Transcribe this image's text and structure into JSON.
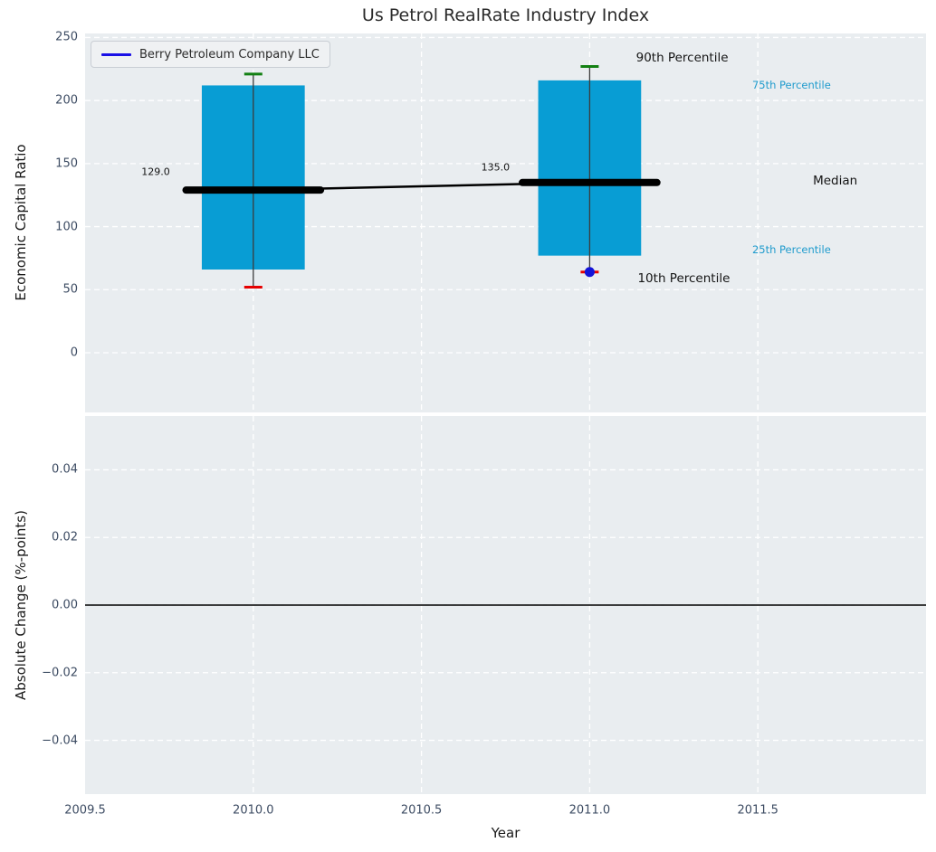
{
  "styles": {
    "axes_bg": "#e9edf0",
    "grid_color": "#ffffff",
    "tick_color": "#3d4c63",
    "bar_color": "#089dd4",
    "whisker_color": "#3c3c3c",
    "p90_tick_color": "#128012",
    "p10_tick_color": "#e60000",
    "company_color": "#1313d8",
    "median_color": "#000000",
    "zero_line_color": "#000000",
    "percentile_label_color": "#1f9bcd"
  },
  "chart_data": [
    {
      "type": "bar",
      "title": "Us Petrol RealRate Industry Index",
      "ylabel": "Economic Capital Ratio",
      "legend": {
        "label": "Berry Petroleum Company LLC",
        "position": "upper left",
        "color": "#1a10e6"
      },
      "xlim": [
        2009.5,
        2012.0
      ],
      "ylim": [
        -47.35,
        253.2
      ],
      "grid": true,
      "yticks": [
        {
          "v": 0,
          "label": "0"
        },
        {
          "v": 50,
          "label": "50"
        },
        {
          "v": 100,
          "label": "100"
        },
        {
          "v": 150,
          "label": "150"
        },
        {
          "v": 200,
          "label": "200"
        },
        {
          "v": 250,
          "label": "250"
        }
      ],
      "xticks": [
        {
          "v": 2009.5
        },
        {
          "v": 2010.0
        },
        {
          "v": 2010.5
        },
        {
          "v": 2011.0
        },
        {
          "v": 2011.5
        }
      ],
      "show_xticklabels": false,
      "bar_width_years": 0.306,
      "median_cap_halfwidth_years": 0.2,
      "boxes": [
        {
          "x": 2010.0,
          "p90": 221,
          "p75": 212,
          "median": 129,
          "p25": 66,
          "p10": 52,
          "median_label": "129.0"
        },
        {
          "x": 2011.0,
          "p90": 227,
          "p75": 216,
          "median": 135,
          "p25": 77,
          "p10": 64,
          "median_label": "135.0",
          "company_value": 64
        }
      ],
      "median_trend": {
        "x": [
          2010.0,
          2011.0
        ],
        "y": [
          129,
          135
        ]
      },
      "annotations": [
        {
          "text": "129.0",
          "x": 2009.71,
          "y": 143.5,
          "size": 11,
          "color": "#141414"
        },
        {
          "text": "135.0",
          "x": 2010.72,
          "y": 147.0,
          "size": 11,
          "color": "#141414"
        },
        {
          "text": "90th Percentile",
          "x": 2011.275,
          "y": 234.0,
          "size": 13.5,
          "color": "#141414"
        },
        {
          "text": "10th Percentile",
          "x": 2011.28,
          "y": 59.0,
          "size": 13.5,
          "color": "#141414"
        },
        {
          "text": "Median",
          "x": 2011.73,
          "y": 136.0,
          "size": 13.5,
          "color": "#141414"
        },
        {
          "text": "75th Percentile",
          "x": 2011.6,
          "y": 212.0,
          "size": 11.5,
          "color": "#1f9bcd"
        },
        {
          "text": "25th Percentile",
          "x": 2011.6,
          "y": 82.0,
          "size": 11.5,
          "color": "#1f9bcd"
        }
      ]
    },
    {
      "type": "line",
      "ylabel": "Absolute Change (%-points)",
      "xlabel": "Year",
      "xlim": [
        2009.5,
        2012.0
      ],
      "ylim": [
        -0.0559,
        0.0559
      ],
      "grid": true,
      "yticks": [
        {
          "v": 0.04,
          "label": "0.04"
        },
        {
          "v": 0.02,
          "label": "0.02"
        },
        {
          "v": 0.0,
          "label": "0.00"
        },
        {
          "v": -0.02,
          "label": "−0.02"
        },
        {
          "v": -0.04,
          "label": "−0.04"
        }
      ],
      "xticks": [
        {
          "v": 2009.5,
          "label": "2009.5"
        },
        {
          "v": 2010.0,
          "label": "2010.0"
        },
        {
          "v": 2010.5,
          "label": "2010.5"
        },
        {
          "v": 2011.0,
          "label": "2011.0"
        },
        {
          "v": 2011.5,
          "label": "2011.5"
        }
      ],
      "zero_line": 0.0
    }
  ]
}
